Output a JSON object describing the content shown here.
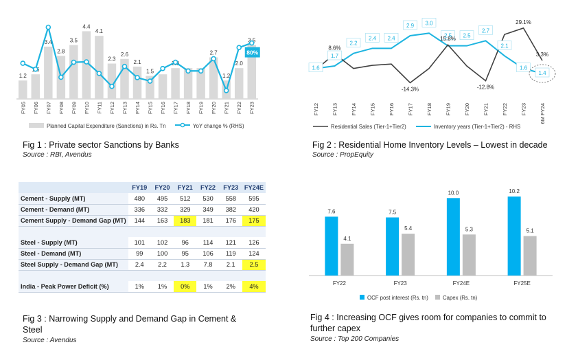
{
  "fig1": {
    "caption": "Fig 1 : Private sector Sanctions by Banks",
    "source": "Source : RBI, Avendus",
    "chart_data": {
      "type": "bar",
      "categories": [
        "FY05",
        "FY06",
        "FY07",
        "FY08",
        "FY09",
        "FY10",
        "FY11",
        "FY12",
        "FY13",
        "FY14",
        "FY15",
        "FY16",
        "FY17",
        "FY18",
        "FY19",
        "FY20",
        "FY21",
        "FY22",
        "FY23"
      ],
      "series": [
        {
          "name": "Planned Capital Expenditure (Sanctions) in Rs. Tn",
          "values": [
            1.2,
            1.6,
            3.4,
            2.8,
            3.5,
            4.4,
            4.1,
            2.3,
            2.6,
            2.1,
            1.5,
            1.6,
            2.0,
            2.0,
            2.0,
            2.7,
            1.2,
            2.0,
            3.5
          ],
          "labels": [
            "1.2",
            "1.6",
            "3.4",
            "2.8",
            "3.5",
            "4.4",
            "4.1",
            "2.3",
            "2.6",
            "2.1",
            "1.5",
            "",
            "2.0",
            "",
            "",
            "2.7",
            "1.2",
            "2.0",
            "3.5"
          ],
          "color": "#d9d9d9"
        },
        {
          "name": "YoY change % (RHS)",
          "type": "line",
          "color": "#1db4e0",
          "values": [
            22,
            5,
            125,
            -18,
            25,
            26,
            -7,
            -44,
            13,
            -19,
            -29,
            7,
            25,
            0,
            0,
            35,
            -56,
            67,
            80
          ]
        }
      ],
      "ylim": [
        0,
        5
      ],
      "y2lim": [
        -80,
        140
      ],
      "annotation": "80%"
    }
  },
  "fig2": {
    "caption": "Fig 2 : Residential Home Inventory Levels – Lowest in decade",
    "source": "Source : PropEquity",
    "chart_data": {
      "type": "line",
      "x": [
        "FY12",
        "FY13",
        "FY14",
        "FY15",
        "FY16",
        "FY17",
        "FY18",
        "FY19",
        "FY20",
        "FY21",
        "FY22",
        "FY23",
        "6M FY24"
      ],
      "series": [
        {
          "name": "Residential Sales (Tier-1+Tier2)",
          "color": "#404040",
          "values": [
            -4,
            8.6,
            -3,
            -0.5,
            0.5,
            -14.3,
            -3,
            15.8,
            -1,
            -12.8,
            24,
            29.1,
            3.3
          ],
          "labels": [
            "",
            "8.6%",
            "",
            "",
            "",
            "-14.3%",
            "",
            "15.8%",
            "",
            "-12.8%",
            "",
            "29.1%",
            "3.3%"
          ]
        },
        {
          "name": "Inventory years (Tier-1+Tier2) - RHS",
          "color": "#1db4e0",
          "values": [
            1.6,
            1.7,
            2.2,
            2.4,
            2.4,
            2.9,
            3.0,
            2.5,
            2.5,
            2.7,
            2.1,
            1.6,
            1.4
          ],
          "labels": [
            "1.6",
            "1.7",
            "2.2",
            "2.4",
            "2.4",
            "2.9",
            "3.0",
            "2.5",
            "2.5",
            "2.7",
            "2.1",
            "1.6",
            "1.4"
          ]
        }
      ],
      "ylim": [
        -25,
        35
      ],
      "y2lim": [
        0.5,
        3.5
      ]
    }
  },
  "fig3": {
    "caption": "Fig 3 : Narrowing Supply and Demand Gap in Cement & Steel",
    "source": "Source : Avendus",
    "chart_data": {
      "type": "table",
      "columns": [
        "FY19",
        "FY20",
        "FY21",
        "FY22",
        "FY23",
        "FY24E"
      ],
      "rows": [
        {
          "label": "Cement - Supply (MT)",
          "values": [
            "480",
            "495",
            "512",
            "530",
            "558",
            "595"
          ],
          "highlight": []
        },
        {
          "label": "Cement - Demand (MT)",
          "values": [
            "336",
            "332",
            "329",
            "349",
            "382",
            "420"
          ],
          "highlight": []
        },
        {
          "label": "Cement Supply - Demand Gap (MT)",
          "values": [
            "144",
            "163",
            "183",
            "181",
            "176",
            "175"
          ],
          "highlight": [
            2,
            5
          ]
        },
        {
          "label": "",
          "values": [
            "",
            "",
            "",
            "",
            "",
            ""
          ],
          "highlight": [],
          "spacer": true
        },
        {
          "label": "Steel - Supply (MT)",
          "values": [
            "101",
            "102",
            "96",
            "114",
            "121",
            "126"
          ],
          "highlight": []
        },
        {
          "label": "Steel - Demand (MT)",
          "values": [
            "99",
            "100",
            "95",
            "106",
            "119",
            "124"
          ],
          "highlight": []
        },
        {
          "label": "Steel Supply - Demand Gap (MT)",
          "values": [
            "2.4",
            "2.2",
            "1.3",
            "7.8",
            "2.1",
            "2.5"
          ],
          "highlight": [
            5
          ]
        },
        {
          "label": "",
          "values": [
            "",
            "",
            "",
            "",
            "",
            ""
          ],
          "highlight": [],
          "spacer": true
        },
        {
          "label": "India - Peak Power Deficit (%)",
          "values": [
            "1%",
            "1%",
            "0%",
            "1%",
            "2%",
            "4%"
          ],
          "highlight": [
            2,
            5
          ]
        }
      ]
    }
  },
  "fig4": {
    "caption": "Fig 4 : Increasing OCF gives room for companies to commit to further capex",
    "source": "Source : Top 200 Companies",
    "chart_data": {
      "type": "bar",
      "categories": [
        "FY22",
        "FY23",
        "FY24E",
        "FY25E"
      ],
      "series": [
        {
          "name": "OCF post interest (Rs. tn)",
          "color": "#00b0f0",
          "values": [
            7.6,
            7.5,
            10.0,
            10.2
          ],
          "labels": [
            "7.6",
            "7.5",
            "10.0",
            "10.2"
          ]
        },
        {
          "name": "Capex (Rs. tn)",
          "color": "#bfbfbf",
          "values": [
            4.1,
            5.4,
            5.3,
            5.1
          ],
          "labels": [
            "4.1",
            "5.4",
            "5.3",
            "5.1"
          ]
        }
      ],
      "ylim": [
        0,
        11
      ]
    }
  }
}
